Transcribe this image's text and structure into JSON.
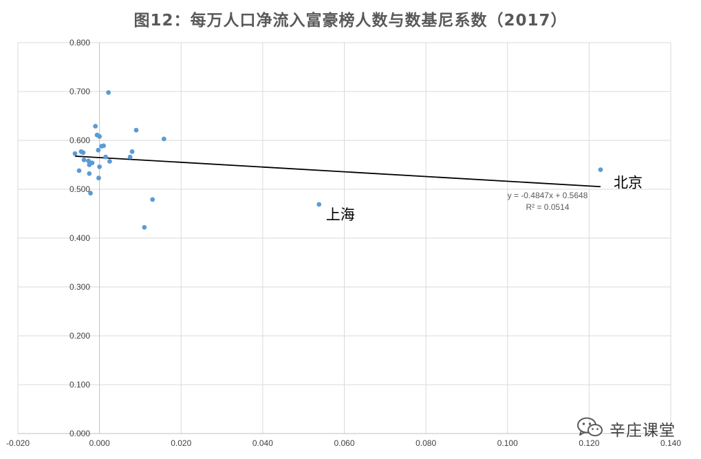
{
  "chart_data": {
    "type": "scatter",
    "title": "图12：每万人口净流入富豪榜人数与数基尼系数（2017）",
    "xlim": [
      -0.02,
      0.14
    ],
    "ylim": [
      0.0,
      0.8
    ],
    "x_ticks": [
      "-0.020",
      "0.000",
      "0.020",
      "0.040",
      "0.060",
      "0.080",
      "0.100",
      "0.120",
      "0.140"
    ],
    "y_ticks": [
      "0.000",
      "0.100",
      "0.200",
      "0.300",
      "0.400",
      "0.500",
      "0.600",
      "0.700",
      "0.800"
    ],
    "grid": true,
    "point_color": "#5b9bd5",
    "points": [
      {
        "x": -0.006,
        "y": 0.573
      },
      {
        "x": -0.005,
        "y": 0.538
      },
      {
        "x": -0.0045,
        "y": 0.577
      },
      {
        "x": -0.004,
        "y": 0.575
      },
      {
        "x": -0.0038,
        "y": 0.56
      },
      {
        "x": -0.0027,
        "y": 0.558
      },
      {
        "x": -0.0025,
        "y": 0.55
      },
      {
        "x": -0.0025,
        "y": 0.532
      },
      {
        "x": -0.0022,
        "y": 0.492
      },
      {
        "x": -0.0018,
        "y": 0.554
      },
      {
        "x": -0.001,
        "y": 0.629
      },
      {
        "x": -0.0006,
        "y": 0.611
      },
      {
        "x": -0.0003,
        "y": 0.58
      },
      {
        "x": 0.0,
        "y": 0.608
      },
      {
        "x": 0.0,
        "y": 0.546
      },
      {
        "x": -0.0002,
        "y": 0.523
      },
      {
        "x": 0.0005,
        "y": 0.588
      },
      {
        "x": 0.001,
        "y": 0.589
      },
      {
        "x": 0.0015,
        "y": 0.566
      },
      {
        "x": 0.0022,
        "y": 0.698
      },
      {
        "x": 0.0025,
        "y": 0.557
      },
      {
        "x": 0.0075,
        "y": 0.566
      },
      {
        "x": 0.008,
        "y": 0.577
      },
      {
        "x": 0.009,
        "y": 0.621
      },
      {
        "x": 0.011,
        "y": 0.422
      },
      {
        "x": 0.013,
        "y": 0.479
      },
      {
        "x": 0.0158,
        "y": 0.603
      },
      {
        "x": 0.0538,
        "y": 0.469
      },
      {
        "x": 0.1228,
        "y": 0.54
      }
    ],
    "trendline": {
      "slope": -0.4847,
      "intercept": 0.5648,
      "x_range": [
        -0.006,
        0.1228
      ],
      "color": "#000000"
    },
    "equation_text": "y = -0.4847x + 0.5648",
    "r2_text": "R² = 0.0514",
    "annotations": [
      {
        "text": "北京",
        "x": 0.1228,
        "y": 0.54
      },
      {
        "text": "上海",
        "x": 0.0538,
        "y": 0.469
      }
    ]
  },
  "watermark": {
    "icon": "wechat-icon",
    "text": "辛庄课堂"
  }
}
